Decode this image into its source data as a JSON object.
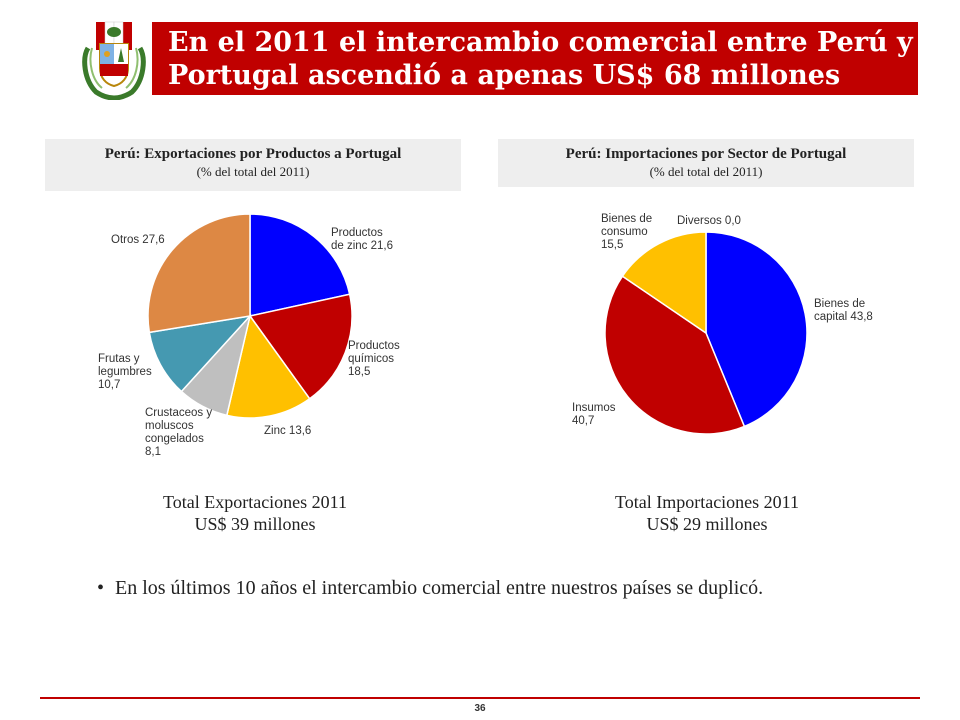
{
  "title": "En el 2011 el intercambio comercial entre Perú y Portugal ascendió a apenas US$ 68 millones",
  "colors": {
    "title_bar": "#c00000",
    "footer_line": "#c00000"
  },
  "chart_data": [
    {
      "type": "pie",
      "title": "Perú: Exportaciones por Productos a Portugal",
      "subtitle": "(% del total del 2011)",
      "categories": [
        "Productos de zinc",
        "Productos químicos",
        "Zinc",
        "Crustaceos y moluscos congelados",
        "Frutas y legumbres",
        "Otros"
      ],
      "values": [
        21.6,
        18.5,
        13.6,
        8.1,
        10.7,
        27.6
      ],
      "labels": [
        "Productos de zinc 21,6",
        "Productos químicos 18,5",
        "Zinc 13,6",
        "Crustaceos y moluscos congelados 8,1",
        "Frutas y legumbres 10,7",
        "Otros 27,6"
      ],
      "colors": [
        "#0000ff",
        "#c00000",
        "#ffc000",
        "#bfbfbf",
        "#4599b1",
        "#dd8844"
      ],
      "total_line1": "Total Exportaciones 2011",
      "total_line2": "US$ 39 millones"
    },
    {
      "type": "pie",
      "title": "Perú: Importaciones por Sector de Portugal",
      "subtitle": "(% del total del 2011)",
      "categories": [
        "Bienes de capital",
        "Insumos",
        "Bienes de consumo",
        "Diversos"
      ],
      "values": [
        43.8,
        40.7,
        15.5,
        0.0
      ],
      "labels": [
        "Bienes de capital 43,8",
        "Insumos 40,7",
        "Bienes de consumo 15,5",
        "Diversos 0,0"
      ],
      "colors": [
        "#0000ff",
        "#c00000",
        "#ffc000",
        "#7f7f7f"
      ],
      "total_line1": "Total Importaciones 2011",
      "total_line2": "US$ 29 millones"
    }
  ],
  "bullet": "En los últimos 10 años el intercambio comercial entre nuestros países se duplicó.",
  "page_number": "36"
}
